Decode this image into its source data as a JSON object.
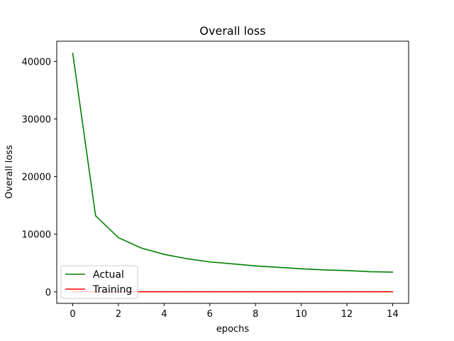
{
  "chart_data": {
    "type": "line",
    "title": "Overall loss",
    "xlabel": "epochs",
    "ylabel": "Overall loss",
    "xlim": [
      -0.7,
      14.7
    ],
    "ylim": [
      -2000,
      43500
    ],
    "xticks": [
      0,
      2,
      4,
      6,
      8,
      10,
      12,
      14
    ],
    "yticks": [
      0,
      10000,
      20000,
      30000,
      40000
    ],
    "grid": false,
    "legend_position": "lower-left",
    "x": [
      0,
      1,
      2,
      3,
      4,
      5,
      6,
      7,
      8,
      9,
      10,
      11,
      12,
      13,
      14
    ],
    "series": [
      {
        "name": "Actual",
        "color": "#008000",
        "values": [
          41400,
          13200,
          9400,
          7600,
          6500,
          5750,
          5200,
          4850,
          4500,
          4250,
          4000,
          3800,
          3700,
          3500,
          3420
        ]
      },
      {
        "name": "Training",
        "color": "#ff0000",
        "values": [
          30,
          20,
          15,
          12,
          10,
          10,
          10,
          10,
          10,
          10,
          10,
          10,
          10,
          10,
          10
        ]
      }
    ]
  }
}
